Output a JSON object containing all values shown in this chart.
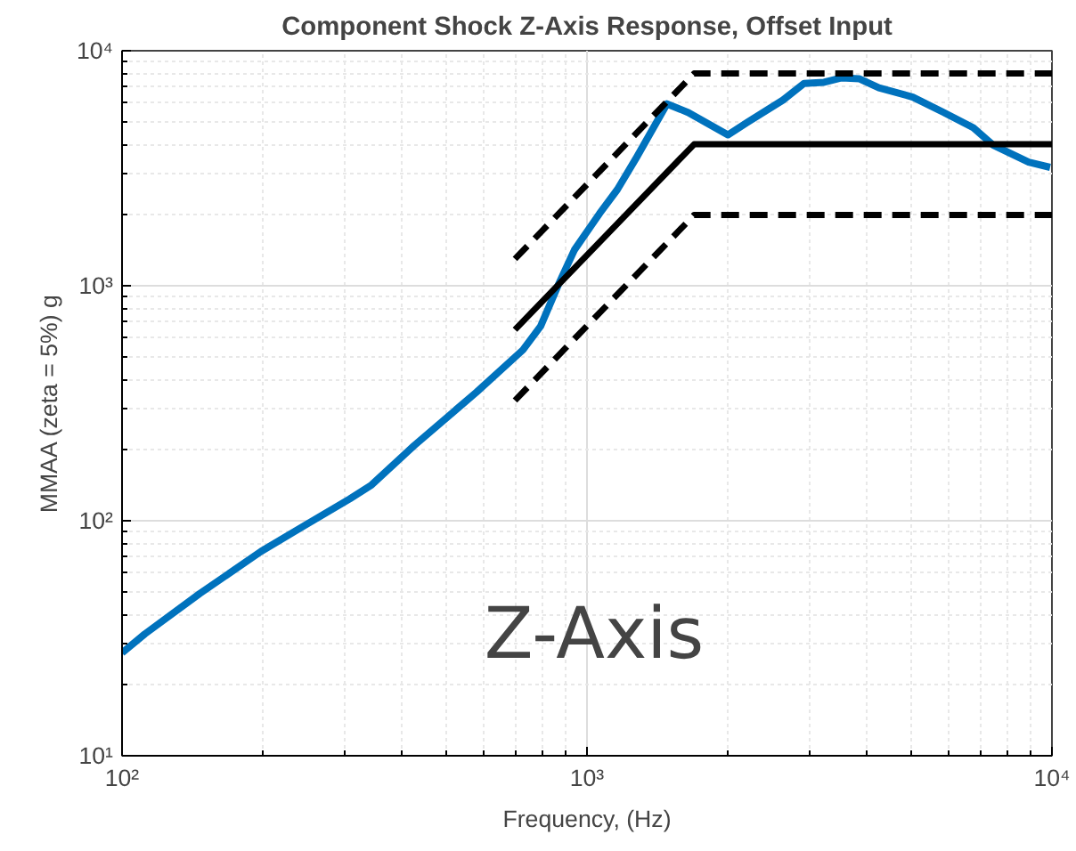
{
  "chart_data": {
    "type": "line",
    "title": "Component Shock Z-Axis Response, Offset Input",
    "xlabel": "Frequency, (Hz)",
    "ylabel": "MMAA (zeta = 5%) g",
    "log": "xy",
    "grid": true,
    "xlim": [
      100,
      10000
    ],
    "ylim": [
      10,
      10000
    ],
    "xticks": [
      {
        "value": 100,
        "label": "10²"
      },
      {
        "value": 1000,
        "label": "10³"
      },
      {
        "value": 10000,
        "label": "10⁴"
      }
    ],
    "yticks": [
      {
        "value": 10,
        "label": "10¹"
      },
      {
        "value": 100,
        "label": "10²"
      },
      {
        "value": 1000,
        "label": "10³"
      },
      {
        "value": 10000,
        "label": "10⁴"
      }
    ],
    "annotations": [
      "Z-Axis"
    ],
    "series": [
      {
        "color": "#0072bd",
        "line_style": "solid",
        "x": [
          100,
          112,
          147,
          199,
          246,
          309,
          344,
          425,
          578,
          728,
          795,
          869,
          940,
          1064,
          1162,
          1279,
          1486,
          1652,
          2009,
          2213,
          2638,
          2931,
          3235,
          3532,
          3857,
          4245,
          5021,
          5834,
          6776,
          7465,
          8910,
          9910
        ],
        "values": [
          27.4,
          33,
          49,
          74,
          95,
          124,
          142,
          209,
          352,
          533,
          673,
          1016,
          1422,
          2028,
          2565,
          3524,
          5940,
          5458,
          4385,
          4963,
          6162,
          7260,
          7340,
          7670,
          7590,
          6950,
          6350,
          5480,
          4700,
          3975,
          3357,
          3190
        ]
      },
      {
        "color": "#000000",
        "line_style": "solid",
        "x": [
          700,
          1700,
          10000
        ],
        "values": [
          650,
          4000,
          4000
        ]
      },
      {
        "color": "#000000",
        "line_style": "dashed",
        "x": [
          700,
          1700,
          10000
        ],
        "values": [
          1300,
          8000,
          8000
        ]
      },
      {
        "color": "#000000",
        "line_style": "dashed",
        "x": [
          700,
          1700,
          10000
        ],
        "values": [
          325,
          2000,
          2000
        ]
      }
    ]
  }
}
